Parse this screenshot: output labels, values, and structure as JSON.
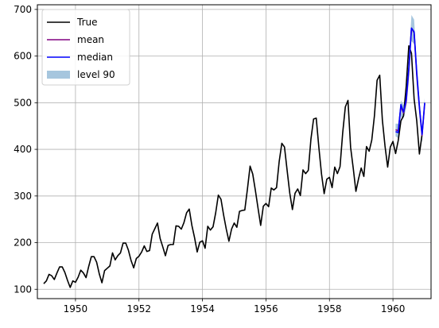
{
  "chart_data": {
    "type": "line",
    "xlim": [
      1948.8,
      1961.2
    ],
    "ylim": [
      80,
      710
    ],
    "x_ticks": [
      "1950",
      "1952",
      "1954",
      "1956",
      "1958",
      "1960"
    ],
    "y_ticks": [
      "100",
      "200",
      "300",
      "400",
      "500",
      "600",
      "700"
    ],
    "grid": true,
    "legend_position": "upper-left",
    "series": [
      {
        "name": "True",
        "color": "#000000",
        "x_start": 1949.0,
        "x_step": 0.0833333,
        "values": [
          112,
          118,
          132,
          129,
          121,
          135,
          148,
          148,
          136,
          119,
          104,
          118,
          115,
          126,
          141,
          135,
          125,
          149,
          170,
          170,
          158,
          133,
          114,
          140,
          145,
          150,
          178,
          163,
          172,
          178,
          199,
          199,
          184,
          162,
          146,
          166,
          171,
          180,
          193,
          181,
          183,
          218,
          230,
          242,
          209,
          191,
          172,
          194,
          196,
          196,
          236,
          235,
          229,
          243,
          264,
          272,
          237,
          211,
          180,
          201,
          204,
          188,
          235,
          227,
          234,
          264,
          302,
          293,
          259,
          229,
          203,
          229,
          242,
          233,
          267,
          269,
          270,
          315,
          364,
          347,
          312,
          274,
          237,
          278,
          284,
          277,
          317,
          313,
          318,
          374,
          413,
          405,
          355,
          306,
          271,
          306,
          315,
          301,
          356,
          348,
          355,
          422,
          465,
          467,
          404,
          347,
          305,
          336,
          340,
          318,
          362,
          348,
          363,
          435,
          491,
          505,
          404,
          359,
          310,
          337,
          360,
          342,
          406,
          396,
          420,
          472,
          548,
          559,
          463,
          407,
          362,
          405,
          417,
          391,
          419,
          461,
          472,
          535,
          622,
          606,
          508,
          461,
          390,
          432
        ]
      },
      {
        "name": "mean",
        "color": "#800080",
        "x_start": 1960.0833,
        "x_step": 0.0833333,
        "values": [
          442,
          440,
          492,
          478,
          502,
          570,
          660,
          650,
          560,
          490,
          430,
          498
        ]
      },
      {
        "name": "median",
        "color": "#0000ff",
        "x_start": 1960.0833,
        "x_step": 0.0833333,
        "values": [
          438,
          436,
          496,
          480,
          506,
          574,
          660,
          652,
          565,
          492,
          432,
          500
        ]
      }
    ],
    "band": {
      "name": "level 90",
      "color": "#a6c6de",
      "x_start": 1960.0833,
      "x_step": 0.0833333,
      "lower": [
        428,
        424,
        470,
        466,
        488,
        545,
        632,
        626,
        535,
        470,
        415,
        480
      ],
      "upper": [
        455,
        455,
        505,
        495,
        520,
        595,
        688,
        678,
        585,
        510,
        445,
        510
      ]
    }
  }
}
